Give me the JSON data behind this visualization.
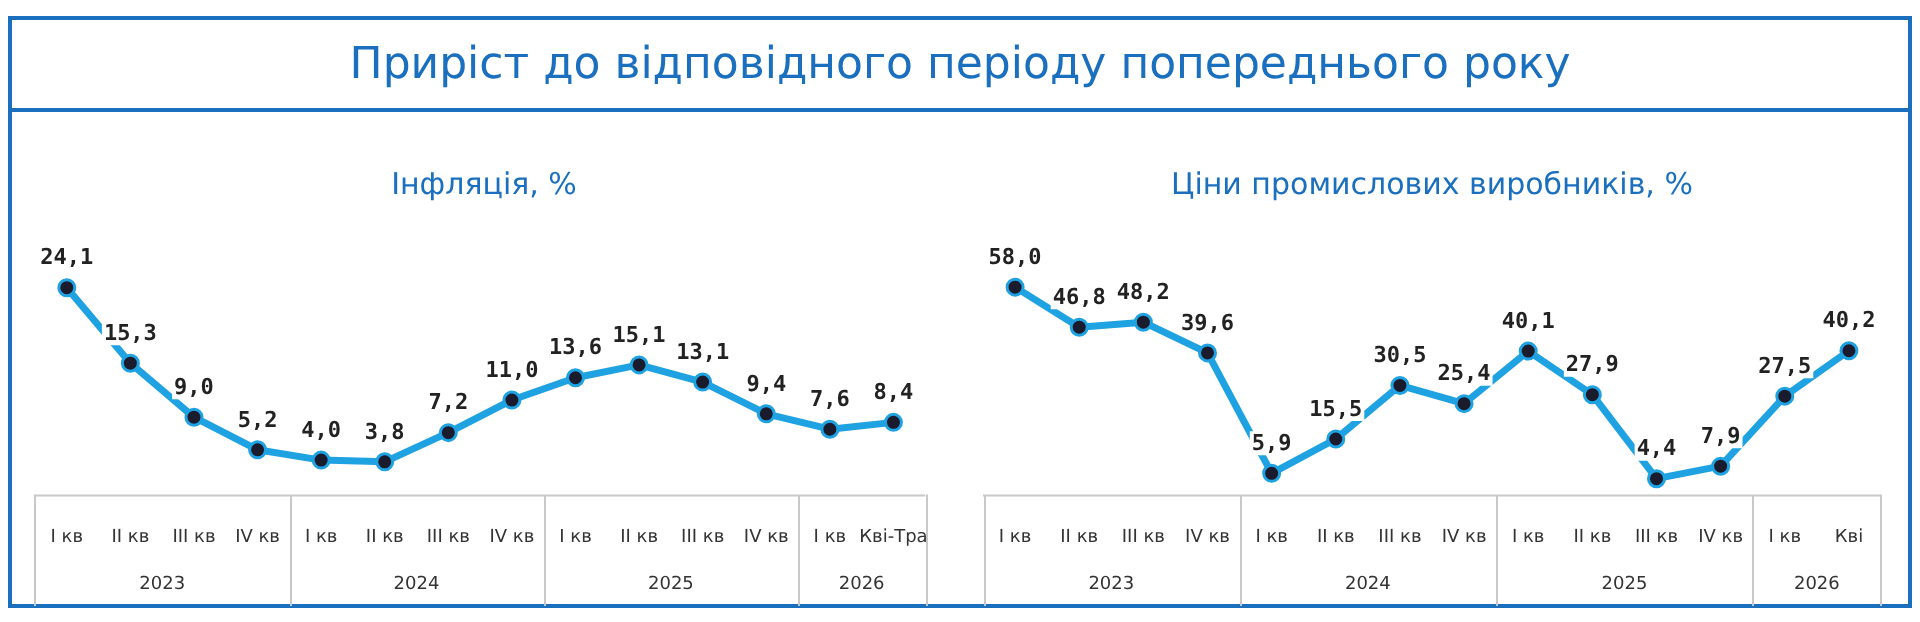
{
  "chart_data": [
    {
      "type": "other",
      "title": "Приріст до відповідного періоду попереднього року"
    },
    {
      "type": "line",
      "title": "Інфляція, %",
      "categories": [
        "I кв",
        "II кв",
        "III кв",
        "IV кв",
        "I кв",
        "II кв",
        "III кв",
        "IV кв",
        "I кв",
        "II кв",
        "III кв",
        "IV кв",
        "I кв",
        "Кві-Тра"
      ],
      "color": "#1fa2e2",
      "marker": "circle",
      "values": [
        24.1,
        15.3,
        9.0,
        5.2,
        4.0,
        3.8,
        7.2,
        11.0,
        13.6,
        15.1,
        13.1,
        9.4,
        7.6,
        8.4
      ],
      "value_labels": [
        "24,1",
        "15,3",
        "9,0",
        "5,2",
        "4,0",
        "3,8",
        "7,2",
        "11,0",
        "13,6",
        "15,1",
        "13,1",
        "9,4",
        "7,6",
        "8,4"
      ],
      "annotations": [
        "2023",
        "2024",
        "2025",
        "2026"
      ]
    },
    {
      "type": "line",
      "title": "Ціни промислових виробників, %",
      "categories": [
        "I кв",
        "II кв",
        "III кв",
        "IV кв",
        "I кв",
        "II кв",
        "III кв",
        "IV кв",
        "I кв",
        "II кв",
        "III кв",
        "IV кв",
        "I кв",
        "Кві"
      ],
      "color": "#1fa2e2",
      "marker": "circle",
      "values": [
        58.0,
        46.8,
        48.2,
        39.6,
        5.9,
        15.5,
        30.5,
        25.4,
        40.1,
        27.9,
        4.4,
        7.9,
        27.5,
        40.2
      ],
      "value_labels": [
        "58,0",
        "46,8",
        "48,2",
        "39,6",
        "5,9",
        "15,5",
        "30,5",
        "25,4",
        "40,1",
        "27,9",
        "4,4",
        "7,9",
        "27,5",
        "40,2"
      ],
      "annotations": [
        "2023",
        "2024",
        "2025",
        "2026"
      ]
    }
  ]
}
